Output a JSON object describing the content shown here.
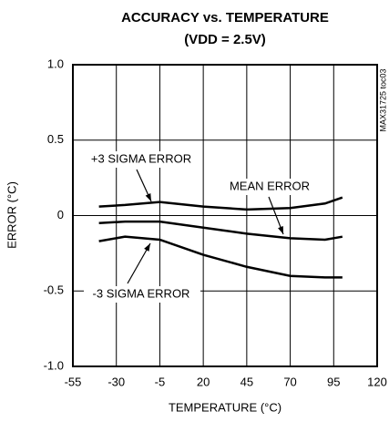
{
  "chart_data": {
    "type": "line",
    "title": "ACCURACY vs. TEMPERATURE",
    "subtitle": "(VDD = 2.5V)",
    "x_label": "TEMPERATURE (°C)",
    "y_label": "ERROR (°C)",
    "side_note": "MAX31725 toc03",
    "x": [
      -40,
      -25,
      -5,
      20,
      45,
      70,
      90,
      100
    ],
    "series": [
      {
        "name": "+3 SIGMA ERROR",
        "color": "#000000",
        "values": [
          0.06,
          0.07,
          0.09,
          0.06,
          0.04,
          0.05,
          0.08,
          0.12
        ]
      },
      {
        "name": "MEAN ERROR",
        "color": "#000000",
        "values": [
          -0.05,
          -0.04,
          -0.04,
          -0.08,
          -0.12,
          -0.15,
          -0.16,
          -0.14
        ]
      },
      {
        "name": "-3 SIGMA ERROR",
        "color": "#000000",
        "values": [
          -0.17,
          -0.14,
          -0.16,
          -0.26,
          -0.34,
          -0.4,
          -0.41,
          -0.41
        ]
      }
    ],
    "xlim": [
      -55,
      120
    ],
    "xticks": [
      -55,
      -30,
      -5,
      20,
      45,
      70,
      95,
      120
    ],
    "ylim": [
      -1,
      1
    ],
    "yticks": [
      {
        "value": -1,
        "label": "-1.0"
      },
      -0.5,
      0,
      0.5,
      {
        "value": 1,
        "label": "1.0"
      }
    ],
    "grid": true
  }
}
